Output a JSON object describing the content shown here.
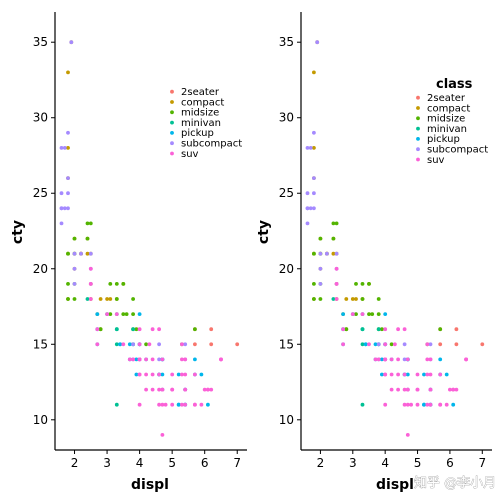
{
  "colors": {
    "2seater": "#F8766D",
    "compact": "#C49A00",
    "midsize": "#53B400",
    "minivan": "#00C094",
    "pickup": "#00B6EB",
    "subcompact": "#A58AFF",
    "suv": "#FB61D7"
  },
  "watermark": "知乎 @李小月",
  "chart_data": [
    {
      "type": "scatter",
      "xlabel": "displ",
      "ylabel": "cty",
      "xlim": [
        1.4,
        7.3
      ],
      "ylim": [
        8,
        37
      ],
      "xticks": [
        2,
        3,
        4,
        5,
        6,
        7
      ],
      "yticks": [
        10,
        15,
        20,
        25,
        30,
        35
      ],
      "grid": false,
      "legend_position": "top-right",
      "legend_title": "",
      "series": [
        {
          "name": "2seater",
          "points": [
            [
              5.7,
              16
            ],
            [
              5.7,
              15
            ],
            [
              6.2,
              16
            ],
            [
              6.2,
              15
            ],
            [
              7.0,
              15
            ]
          ]
        },
        {
          "name": "compact",
          "points": [
            [
              1.8,
              18
            ],
            [
              1.8,
              21
            ],
            [
              2.0,
              20
            ],
            [
              2.0,
              21
            ],
            [
              2.8,
              16
            ],
            [
              2.8,
              18
            ],
            [
              3.1,
              18
            ],
            [
              1.8,
              26
            ],
            [
              1.8,
              28
            ],
            [
              1.8,
              33
            ],
            [
              2.0,
              22
            ],
            [
              2.2,
              21
            ],
            [
              2.2,
              21
            ],
            [
              2.4,
              21
            ],
            [
              2.4,
              22
            ],
            [
              2.5,
              18
            ],
            [
              2.5,
              19
            ],
            [
              2.5,
              21
            ],
            [
              2.7,
              17
            ],
            [
              3.0,
              18
            ],
            [
              3.3,
              18
            ],
            [
              3.5,
              19
            ],
            [
              1.9,
              35
            ]
          ]
        },
        {
          "name": "midsize",
          "points": [
            [
              2.4,
              23
            ],
            [
              2.4,
              22
            ],
            [
              2.5,
              23
            ],
            [
              2.8,
              16
            ],
            [
              3.1,
              17
            ],
            [
              3.3,
              18
            ],
            [
              3.5,
              19
            ],
            [
              3.6,
              17
            ],
            [
              3.8,
              18
            ],
            [
              3.8,
              17
            ],
            [
              3.8,
              16
            ],
            [
              3.9,
              16
            ],
            [
              3.1,
              19
            ],
            [
              3.3,
              19
            ],
            [
              3.5,
              17
            ],
            [
              4.2,
              15
            ],
            [
              5.3,
              15
            ],
            [
              5.7,
              16
            ],
            [
              1.8,
              21
            ],
            [
              1.8,
              18
            ],
            [
              1.8,
              19
            ],
            [
              2.0,
              21
            ],
            [
              2.0,
              22
            ],
            [
              2.0,
              19
            ],
            [
              2.0,
              18
            ]
          ]
        },
        {
          "name": "minivan",
          "points": [
            [
              2.4,
              18
            ],
            [
              3.0,
              17
            ],
            [
              3.3,
              16
            ],
            [
              3.3,
              17
            ],
            [
              3.3,
              15
            ],
            [
              3.3,
              16
            ],
            [
              3.8,
              15
            ],
            [
              3.8,
              16
            ],
            [
              3.8,
              15
            ],
            [
              4.0,
              15
            ],
            [
              3.3,
              11
            ]
          ]
        },
        {
          "name": "pickup",
          "points": [
            [
              3.7,
              15
            ],
            [
              3.7,
              14
            ],
            [
              3.9,
              13
            ],
            [
              3.9,
              14
            ],
            [
              4.7,
              14
            ],
            [
              4.7,
              14
            ],
            [
              4.7,
              13
            ],
            [
              5.2,
              11
            ],
            [
              5.2,
              13
            ],
            [
              4.7,
              14
            ],
            [
              5.2,
              11
            ],
            [
              5.7,
              13
            ],
            [
              5.9,
              13
            ],
            [
              4.0,
              15
            ],
            [
              4.2,
              14
            ],
            [
              4.6,
              13
            ],
            [
              5.4,
              11
            ],
            [
              5.4,
              12
            ],
            [
              2.7,
              15
            ],
            [
              2.7,
              17
            ],
            [
              2.7,
              16
            ],
            [
              3.4,
              15
            ],
            [
              3.4,
              15
            ],
            [
              4.0,
              15
            ],
            [
              4.0,
              14
            ],
            [
              4.6,
              13
            ],
            [
              5.4,
              11
            ],
            [
              4.7,
              12
            ],
            [
              5.7,
              14
            ],
            [
              6.1,
              11
            ],
            [
              5.4,
              12
            ],
            [
              4.0,
              17
            ]
          ]
        },
        {
          "name": "subcompact",
          "points": [
            [
              1.6,
              28
            ],
            [
              1.6,
              24
            ],
            [
              1.6,
              25
            ],
            [
              1.6,
              23
            ],
            [
              1.6,
              24
            ],
            [
              1.8,
              26
            ],
            [
              1.8,
              25
            ],
            [
              1.8,
              24
            ],
            [
              1.8,
              29
            ],
            [
              1.9,
              35
            ],
            [
              2.0,
              21
            ],
            [
              2.0,
              19
            ],
            [
              2.0,
              20
            ],
            [
              2.5,
              20
            ],
            [
              2.5,
              19
            ],
            [
              3.8,
              15
            ],
            [
              3.8,
              14
            ],
            [
              4.0,
              15
            ],
            [
              4.6,
              14
            ],
            [
              4.6,
              15
            ],
            [
              5.4,
              14
            ],
            [
              5.4,
              15
            ],
            [
              1.7,
              28
            ],
            [
              1.7,
              24
            ],
            [
              2.2,
              21
            ],
            [
              2.5,
              21
            ]
          ]
        },
        {
          "name": "suv",
          "points": [
            [
              4.0,
              11
            ],
            [
              4.0,
              14
            ],
            [
              4.0,
              13
            ],
            [
              4.2,
              14
            ],
            [
              4.6,
              13
            ],
            [
              4.7,
              12
            ],
            [
              5.0,
              13
            ],
            [
              5.4,
              12
            ],
            [
              5.3,
              14
            ],
            [
              5.3,
              11
            ],
            [
              5.7,
              13
            ],
            [
              6.5,
              14
            ],
            [
              4.7,
              9
            ],
            [
              5.7,
              11
            ],
            [
              6.0,
              12
            ],
            [
              4.4,
              13
            ],
            [
              4.4,
              12
            ],
            [
              5.4,
              11
            ],
            [
              5.4,
              12
            ],
            [
              4.3,
              15
            ],
            [
              4.6,
              12
            ],
            [
              6.1,
              12
            ],
            [
              6.5,
              14
            ],
            [
              3.7,
              14
            ],
            [
              4.0,
              15
            ],
            [
              4.6,
              11
            ],
            [
              4.7,
              11
            ],
            [
              4.8,
              11
            ],
            [
              4.2,
              12
            ],
            [
              5.0,
              12
            ],
            [
              3.8,
              14
            ],
            [
              4.0,
              14
            ],
            [
              5.7,
              11
            ],
            [
              6.2,
              12
            ],
            [
              2.5,
              18
            ],
            [
              2.5,
              19
            ],
            [
              2.5,
              20
            ],
            [
              3.5,
              15
            ],
            [
              4.0,
              14
            ],
            [
              4.7,
              12
            ],
            [
              4.0,
              13
            ],
            [
              2.7,
              16
            ],
            [
              2.7,
              15
            ],
            [
              4.0,
              14
            ],
            [
              4.7,
              14
            ],
            [
              5.4,
              14
            ],
            [
              5.9,
              11
            ],
            [
              6.1,
              12
            ],
            [
              4.6,
              16
            ],
            [
              4.4,
              14
            ],
            [
              5.0,
              11
            ],
            [
              5.3,
              13
            ],
            [
              6.5,
              14
            ],
            [
              3.0,
              17
            ],
            [
              3.3,
              17
            ],
            [
              5.4,
              13
            ],
            [
              5.3,
              15
            ],
            [
              4.0,
              16
            ],
            [
              4.2,
              13
            ],
            [
              5.0,
              12
            ],
            [
              4.4,
              16
            ]
          ]
        }
      ]
    },
    {
      "type": "scatter",
      "xlabel": "displ",
      "ylabel": "cty",
      "xlim": [
        1.4,
        7.3
      ],
      "ylim": [
        8,
        37
      ],
      "xticks": [
        2,
        3,
        4,
        5,
        6,
        7
      ],
      "yticks": [
        10,
        15,
        20,
        25,
        30,
        35
      ],
      "grid": false,
      "legend_position": "top-right",
      "legend_title": "class",
      "series_from": 0
    }
  ]
}
